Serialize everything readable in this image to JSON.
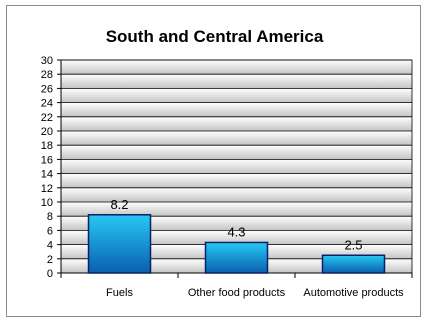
{
  "chart_data": {
    "type": "bar",
    "title": "South and Central America",
    "categories": [
      "Fuels",
      "Other food products",
      "Automotive products"
    ],
    "values": [
      8.2,
      4.3,
      2.5
    ],
    "data_labels": [
      "8.2",
      "4.3",
      "2.5"
    ],
    "ylim": [
      0,
      30
    ],
    "ytick_step": 2,
    "grid": true,
    "legend": "none",
    "colors": {
      "bar_top": "#27c8f2",
      "bar_bottom": "#0a5fb0",
      "bar_edge": "#0b1f66",
      "plot_band_top": "#ffffff",
      "plot_band_bottom": "#c4c4c4",
      "gridline": "#000000"
    }
  }
}
